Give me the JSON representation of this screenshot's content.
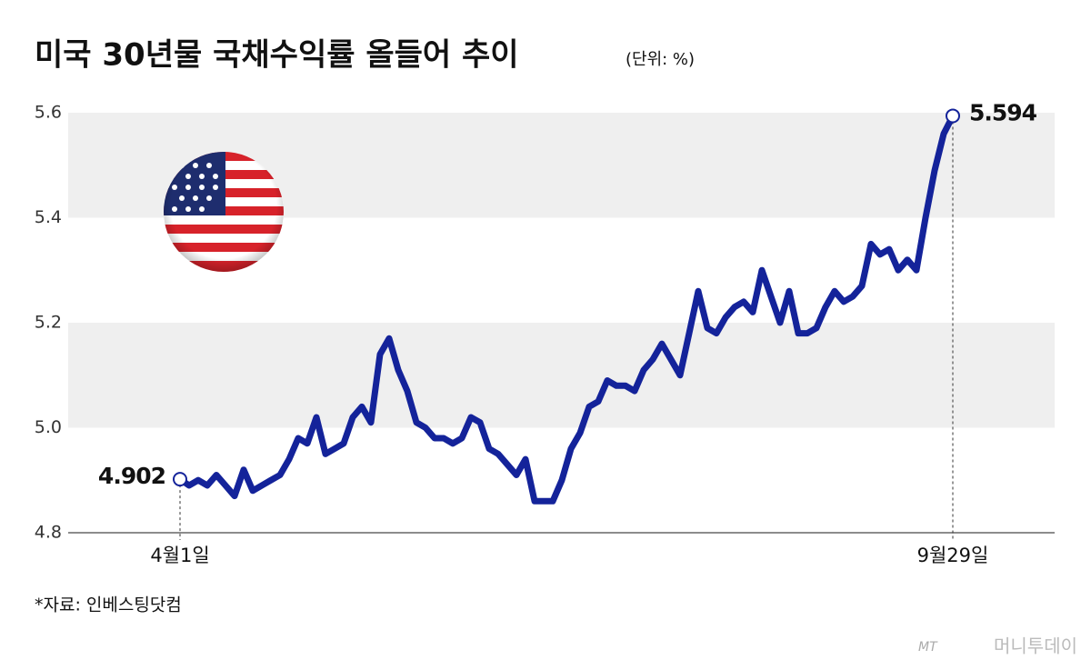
{
  "chart_data": {
    "type": "line",
    "title": "미국 30년물 국채수익률 올들어 추이",
    "subtitle": "(단위: %)",
    "source": "*자료: 인베스팅닷컴",
    "watermark_logo": "MT",
    "watermark": "머니투데이",
    "categories": [
      "4월1일",
      null,
      null,
      null,
      null,
      null,
      null,
      null,
      null,
      null,
      null,
      null,
      null,
      null,
      null,
      null,
      null,
      null,
      null,
      null,
      null,
      null,
      null,
      null,
      null,
      null,
      null,
      null,
      null,
      null,
      null,
      null,
      null,
      null,
      null,
      null,
      null,
      null,
      null,
      null,
      null,
      null,
      null,
      null,
      null,
      null,
      null,
      null,
      null,
      null,
      null,
      null,
      null,
      null,
      null,
      null,
      null,
      null,
      null,
      null,
      null,
      null,
      null,
      null,
      null,
      null,
      null,
      null,
      null,
      null,
      null,
      null,
      null,
      null,
      null,
      null,
      null,
      null,
      null,
      null,
      null,
      null,
      null,
      null,
      null,
      "9월29일"
    ],
    "series": [
      {
        "color": "#14239a",
        "values": [
          4.902,
          4.89,
          4.9,
          4.89,
          4.91,
          4.89,
          4.87,
          4.92,
          4.88,
          4.89,
          4.9,
          4.91,
          4.94,
          4.98,
          4.97,
          5.02,
          4.95,
          4.96,
          4.97,
          5.02,
          5.04,
          5.01,
          5.14,
          5.17,
          5.11,
          5.07,
          5.01,
          5.0,
          4.98,
          4.98,
          4.97,
          4.98,
          5.02,
          5.01,
          4.96,
          4.95,
          4.93,
          4.91,
          4.94,
          4.86,
          4.86,
          4.86,
          4.9,
          4.96,
          4.99,
          5.04,
          5.05,
          5.09,
          5.08,
          5.08,
          5.07,
          5.11,
          5.13,
          5.16,
          5.13,
          5.1,
          5.18,
          5.26,
          5.19,
          5.18,
          5.21,
          5.23,
          5.24,
          5.22,
          5.3,
          5.25,
          5.2,
          5.26,
          5.18,
          5.18,
          5.19,
          5.23,
          5.26,
          5.24,
          5.25,
          5.27,
          5.35,
          5.33,
          5.34,
          5.3,
          5.32,
          5.3,
          5.4,
          5.49,
          5.56,
          5.594
        ]
      }
    ],
    "ylim": [
      4.8,
      5.6
    ],
    "yticks": [
      4.8,
      {
        "value": 5,
        "label": "5.0"
      },
      5.2,
      5.4,
      5.6
    ],
    "grid": "bands",
    "band_color": "#efefef"
  }
}
